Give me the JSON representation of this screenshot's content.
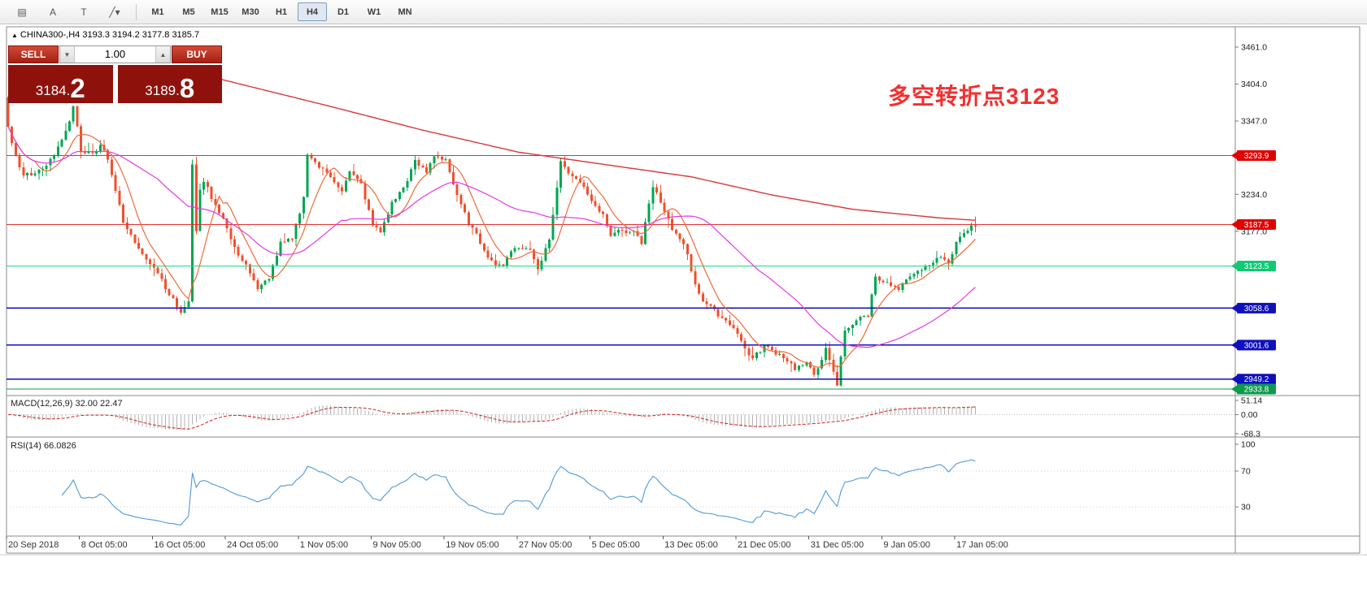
{
  "toolbar": {
    "icon_buttons": [
      {
        "name": "chart-shift-icon",
        "glyph": "▤"
      },
      {
        "name": "arrow-tool-icon",
        "glyph": "A"
      },
      {
        "name": "text-tool-icon",
        "glyph": "T"
      },
      {
        "name": "line-studies-icon",
        "glyph": "╱▾"
      }
    ],
    "timeframes": [
      "M1",
      "M5",
      "M15",
      "M30",
      "H1",
      "H4",
      "D1",
      "W1",
      "MN"
    ],
    "active_timeframe": "H4"
  },
  "symbol_header": {
    "marker": "▲",
    "text": "CHINA300-,H4  3193.3 3194.2 3177.8 3185.7"
  },
  "trade_panel": {
    "sell_label": "SELL",
    "buy_label": "BUY",
    "volume": "1.00",
    "down_glyph": "▼",
    "up_glyph": "▲",
    "sell_price_main": "3184.",
    "sell_price_big": "2",
    "buy_price_main": "3189.",
    "buy_price_big": "8"
  },
  "annotation": {
    "text": "多空转折点3123",
    "color": "#F23030"
  },
  "indicators": {
    "macd_label": "MACD(12,26,9) 32.00 22.47",
    "rsi_label": "RSI(14) 66.0826"
  },
  "axes": {
    "price_ticks": [
      {
        "label": "3461.0",
        "price": 3461.0
      },
      {
        "label": "3404.0",
        "price": 3404.0
      },
      {
        "label": "3347.0",
        "price": 3347.0
      },
      {
        "label": "3234.0",
        "price": 3234.0
      },
      {
        "label": "3177.0",
        "price": 3177.0
      }
    ],
    "macd_ticks": [
      {
        "label": "51.14",
        "value": 51.14
      },
      {
        "label": "0.00",
        "value": 0
      },
      {
        "label": "-68.3",
        "value": -68.3
      }
    ],
    "rsi_ticks": [
      {
        "label": "100",
        "value": 100
      },
      {
        "label": "70",
        "value": 70
      },
      {
        "label": "30",
        "value": 30
      }
    ],
    "time_labels": [
      "20 Sep 2018",
      "8 Oct 05:00",
      "16 Oct 05:00",
      "24 Oct 05:00",
      "1 Nov 05:00",
      "9 Nov 05:00",
      "19 Nov 05:00",
      "27 Nov 05:00",
      "5 Dec 05:00",
      "13 Dec 05:00",
      "21 Dec 05:00",
      "31 Dec 05:00",
      "9 Jan 05:00",
      "17 Jan 05:00"
    ]
  },
  "chart_data": {
    "type": "candlestick",
    "symbol": "CHINA300-",
    "timeframe": "H4",
    "current_ohlc": {
      "open": 3193.3,
      "high": 3194.2,
      "low": 3177.8,
      "close": 3185.7
    },
    "bid": "3184.2",
    "ask": "3189.8",
    "price_axis_range": {
      "top": 3461.0,
      "bottom": 2933.8
    },
    "candle_colors": {
      "up": "#00a651",
      "down": "#f0502d"
    },
    "levels": [
      {
        "price": 3293.9,
        "label": "3293.9",
        "color": "#e53030",
        "badge_bg": "#e00000",
        "badge_fg": "#ffffff",
        "width": 1
      },
      {
        "price": 3187.5,
        "label": "3187.5",
        "color": "#e53030",
        "badge_bg": "#e00000",
        "badge_fg": "#ffffff",
        "width": 1
      },
      {
        "price": 3123.5,
        "label": "3123.5",
        "color": "#17dd84",
        "badge_bg": "#10c974",
        "badge_fg": "#ffffff",
        "width": 1.4
      },
      {
        "price": 3058.6,
        "label": "3058.6",
        "color": "#0f10bd",
        "badge_bg": "#0f10bd",
        "badge_fg": "#ffffff",
        "width": 1.7
      },
      {
        "price": 3001.6,
        "label": "3001.6",
        "color": "#0f10bd",
        "badge_bg": "#0f10bd",
        "badge_fg": "#ffffff",
        "width": 1.7
      },
      {
        "price": 2949.2,
        "label": "2949.2",
        "color": "#0f10bd",
        "badge_bg": "#0f10bd",
        "badge_fg": "#ffffff",
        "width": 1.7
      },
      {
        "price": 2933.8,
        "label": "2933.8",
        "color": "#0d9a4e",
        "badge_bg": "#0d9a4e",
        "badge_fg": "#ffffff",
        "width": 1.4
      }
    ],
    "close_waypoints": [
      [
        0,
        3340
      ],
      [
        2,
        3292
      ],
      [
        4,
        3262
      ],
      [
        8,
        3270
      ],
      [
        12,
        3292
      ],
      [
        16,
        3345
      ],
      [
        17,
        3372
      ],
      [
        19,
        3302
      ],
      [
        22,
        3296
      ],
      [
        24,
        3312
      ],
      [
        26,
        3290
      ],
      [
        30,
        3190
      ],
      [
        33,
        3160
      ],
      [
        36,
        3136
      ],
      [
        39,
        3114
      ],
      [
        42,
        3080
      ],
      [
        45,
        3052
      ],
      [
        47,
        3066
      ],
      [
        48,
        3282
      ],
      [
        49,
        3180
      ],
      [
        50,
        3238
      ],
      [
        51,
        3256
      ],
      [
        53,
        3230
      ],
      [
        56,
        3196
      ],
      [
        59,
        3150
      ],
      [
        62,
        3126
      ],
      [
        65,
        3086
      ],
      [
        68,
        3106
      ],
      [
        71,
        3158
      ],
      [
        74,
        3164
      ],
      [
        77,
        3228
      ],
      [
        78,
        3298
      ],
      [
        81,
        3276
      ],
      [
        84,
        3262
      ],
      [
        87,
        3240
      ],
      [
        89,
        3268
      ],
      [
        92,
        3250
      ],
      [
        95,
        3186
      ],
      [
        97,
        3176
      ],
      [
        100,
        3220
      ],
      [
        103,
        3244
      ],
      [
        106,
        3284
      ],
      [
        109,
        3268
      ],
      [
        111,
        3294
      ],
      [
        114,
        3288
      ],
      [
        117,
        3230
      ],
      [
        120,
        3190
      ],
      [
        123,
        3160
      ],
      [
        126,
        3130
      ],
      [
        129,
        3124
      ],
      [
        132,
        3154
      ],
      [
        136,
        3148
      ],
      [
        138,
        3120
      ],
      [
        141,
        3164
      ],
      [
        144,
        3284
      ],
      [
        146,
        3268
      ],
      [
        149,
        3254
      ],
      [
        151,
        3236
      ],
      [
        155,
        3200
      ],
      [
        157,
        3172
      ],
      [
        160,
        3180
      ],
      [
        163,
        3174
      ],
      [
        165,
        3160
      ],
      [
        168,
        3248
      ],
      [
        171,
        3206
      ],
      [
        173,
        3180
      ],
      [
        176,
        3160
      ],
      [
        179,
        3096
      ],
      [
        181,
        3070
      ],
      [
        184,
        3054
      ],
      [
        186,
        3044
      ],
      [
        189,
        3030
      ],
      [
        192,
        2996
      ],
      [
        194,
        2980
      ],
      [
        197,
        3000
      ],
      [
        200,
        2990
      ],
      [
        202,
        2984
      ],
      [
        205,
        2966
      ],
      [
        208,
        2972
      ],
      [
        210,
        2956
      ],
      [
        213,
        2994
      ],
      [
        216,
        2940
      ],
      [
        218,
        3024
      ],
      [
        221,
        3040
      ],
      [
        224,
        3048
      ],
      [
        226,
        3108
      ],
      [
        229,
        3096
      ],
      [
        232,
        3086
      ],
      [
        234,
        3100
      ],
      [
        237,
        3114
      ],
      [
        239,
        3124
      ],
      [
        242,
        3136
      ],
      [
        245,
        3130
      ],
      [
        247,
        3160
      ],
      [
        250,
        3180
      ],
      [
        252,
        3186
      ]
    ],
    "ma_red_waypoints": [
      [
        55,
        3412
      ],
      [
        83,
        3371
      ],
      [
        108,
        3333
      ],
      [
        133,
        3299
      ],
      [
        159,
        3277
      ],
      [
        178,
        3261
      ],
      [
        199,
        3233
      ],
      [
        220,
        3211
      ],
      [
        242,
        3198
      ],
      [
        252,
        3194
      ]
    ],
    "ma_periods": {
      "fast_orange": 8,
      "medium_magenta": 40
    },
    "ma_colors": {
      "fast": "#ef6a3a",
      "medium": "#e438e4",
      "slow": "#d93636"
    },
    "macd": {
      "fast": 12,
      "slow": 26,
      "signal": 9,
      "current_main": 32.0,
      "current_signal": 22.47,
      "histogram_color": "#b3b3b3",
      "signal_color": "#cc2222"
    },
    "rsi": {
      "period": 14,
      "current": 66.0826,
      "levels": [
        70,
        30
      ],
      "line_color": "#4f9ad9"
    }
  }
}
